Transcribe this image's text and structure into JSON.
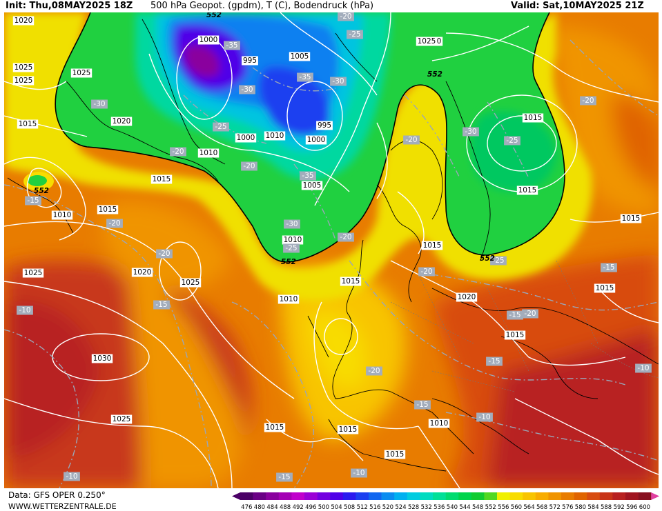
{
  "header": {
    "init": "Init: Thu,08MAY2025 18Z",
    "title": "500 hPa Geopot. (gpdm), T (C), Bodendruck (hPa)",
    "valid": "Valid: Sat,10MAY2025 21Z"
  },
  "footer": {
    "source": "Data: GFS OPER 0.250°",
    "website": "WWW.WETTERZENTRALE.DE"
  },
  "legend": {
    "values": [
      "476",
      "480",
      "484",
      "488",
      "492",
      "496",
      "500",
      "504",
      "508",
      "512",
      "516",
      "520",
      "524",
      "528",
      "532",
      "536",
      "540",
      "544",
      "548",
      "552",
      "556",
      "560",
      "564",
      "568",
      "572",
      "576",
      "580",
      "584",
      "588",
      "592",
      "596",
      "600"
    ],
    "colors": [
      "#4b0066",
      "#6a0085",
      "#8a009e",
      "#a400b5",
      "#c000cc",
      "#9b00d6",
      "#7300e0",
      "#4f00e8",
      "#2b1aef",
      "#1b3ff0",
      "#1066f0",
      "#0a8cf0",
      "#00b0f0",
      "#00cce0",
      "#00dcc0",
      "#00e098",
      "#00dc70",
      "#00d44c",
      "#10cc30",
      "#50d820",
      "#f0f000",
      "#f8dc00",
      "#f8c400",
      "#f8ac00",
      "#f09400",
      "#e87c00",
      "#e06400",
      "#d84c10",
      "#c83418",
      "#b82020",
      "#a01420",
      "#881020"
    ],
    "arrow_left_color": "#4b0066",
    "arrow_right_color": "#e040a0"
  },
  "map": {
    "pressure_labels": [
      {
        "text": "1020"
      },
      {
        "text": "1025"
      },
      {
        "text": "1025"
      },
      {
        "text": "1015"
      },
      {
        "text": "1020"
      },
      {
        "text": "1000"
      },
      {
        "text": "995"
      },
      {
        "text": "1005"
      },
      {
        "text": "995"
      },
      {
        "text": "1000"
      },
      {
        "text": "1010"
      },
      {
        "text": "1000"
      },
      {
        "text": "1010"
      },
      {
        "text": "1005"
      },
      {
        "text": "1025"
      },
      {
        "text": "1020"
      },
      {
        "text": "1010"
      },
      {
        "text": "1015"
      },
      {
        "text": "1015"
      },
      {
        "text": "1015"
      },
      {
        "text": "1010"
      },
      {
        "text": "1025"
      },
      {
        "text": "1020"
      },
      {
        "text": "1025"
      },
      {
        "text": "1010"
      },
      {
        "text": "1025"
      },
      {
        "text": "1015"
      },
      {
        "text": "1015"
      },
      {
        "text": "1020"
      },
      {
        "text": "1015"
      },
      {
        "text": "1015"
      },
      {
        "text": "1015"
      },
      {
        "text": "1030"
      },
      {
        "text": "1025"
      },
      {
        "text": "1015"
      },
      {
        "text": "1015"
      },
      {
        "text": "1015"
      },
      {
        "text": "1010"
      },
      {
        "text": "1015"
      }
    ],
    "temperature_labels": [
      {
        "text": "-20"
      },
      {
        "text": "-25"
      },
      {
        "text": "-35"
      },
      {
        "text": "-30"
      },
      {
        "text": "-35"
      },
      {
        "text": "-30"
      },
      {
        "text": "-30"
      },
      {
        "text": "-25"
      },
      {
        "text": "-20"
      },
      {
        "text": "-20"
      },
      {
        "text": "-35"
      },
      {
        "text": "-30"
      },
      {
        "text": "-25"
      },
      {
        "text": "-20"
      },
      {
        "text": "-20"
      },
      {
        "text": "-30"
      },
      {
        "text": "-25"
      },
      {
        "text": "-20"
      },
      {
        "text": "-15"
      },
      {
        "text": "-15"
      },
      {
        "text": "-20"
      },
      {
        "text": "-15"
      },
      {
        "text": "-10"
      },
      {
        "text": "-20"
      },
      {
        "text": "-25"
      },
      {
        "text": "-20"
      },
      {
        "text": "-20"
      },
      {
        "text": "-15"
      },
      {
        "text": "-20"
      },
      {
        "text": "-15"
      },
      {
        "text": "-10"
      },
      {
        "text": "-15"
      },
      {
        "text": "-10"
      },
      {
        "text": "-10"
      },
      {
        "text": "-15"
      },
      {
        "text": "-10"
      }
    ],
    "geopotential_labels": [
      {
        "text": "552"
      },
      {
        "text": "552"
      },
      {
        "text": "552"
      },
      {
        "text": "552"
      },
      {
        "text": "552"
      }
    ]
  }
}
